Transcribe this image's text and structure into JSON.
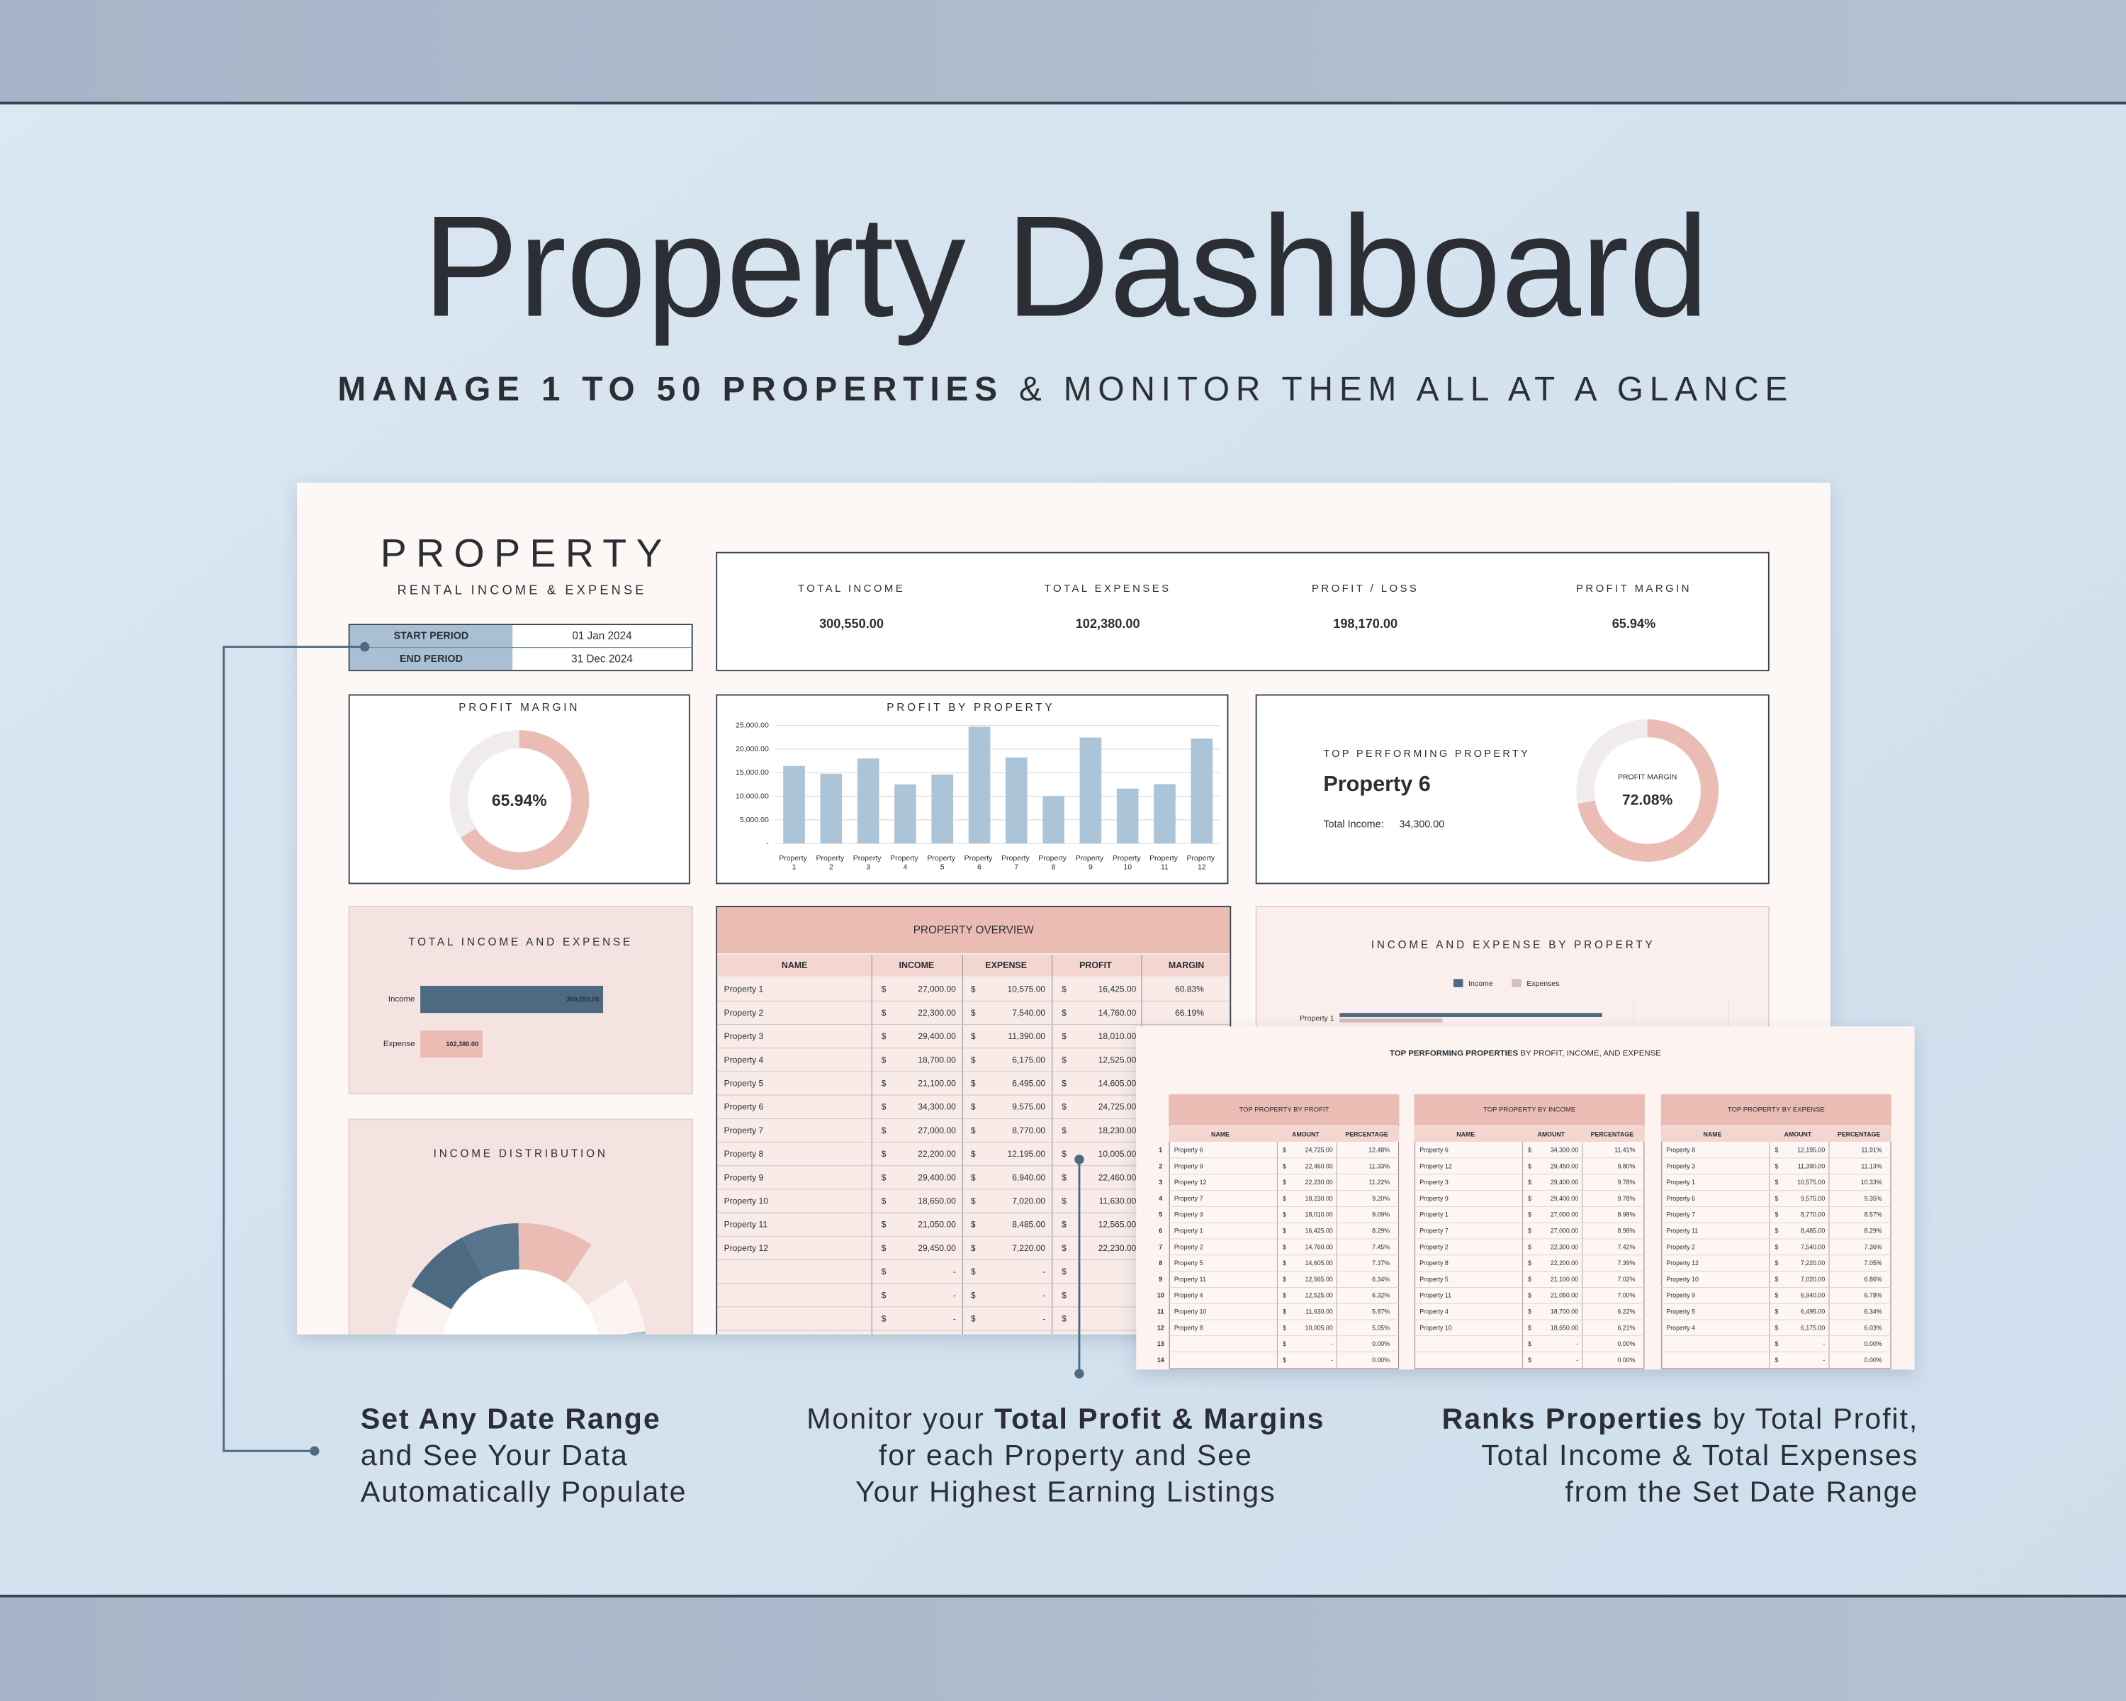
{
  "header": {
    "title": "Property Dashboard",
    "subtitle": [
      {
        "bold": "MANAGE 1 TO 50 PROPERTIES"
      },
      " & MONITOR THEM ALL AT A GLANCE"
    ]
  },
  "dashboard": {
    "brand": "PROPERTY",
    "tagline": "RENTAL INCOME & EXPENSE",
    "period": [
      [
        "START PERIOD",
        "01 Jan 2024"
      ],
      [
        "END PERIOD",
        "31 Dec 2024"
      ]
    ],
    "kpis": [
      [
        "TOTAL INCOME",
        "300,550.00"
      ],
      [
        "TOTAL EXPENSES",
        "102,380.00"
      ],
      [
        "PROFIT / LOSS",
        "198,170.00"
      ],
      [
        "PROFIT MARGIN",
        "65.94%"
      ]
    ],
    "profit_margin": {
      "type": "donut",
      "title": "PROFIT MARGIN",
      "value": 65.94,
      "value_label": "65.94%",
      "color": "#ebbcb3"
    },
    "profit_by_property": {
      "type": "bar",
      "title": "PROFIT BY PROPERTY",
      "categories": [
        "Property 1",
        "Property 2",
        "Property 3",
        "Property 4",
        "Property 5",
        "Property 6",
        "Property 7",
        "Property 8",
        "Property 9",
        "Property 10",
        "Property 11",
        "Property 12"
      ],
      "values": [
        16425,
        14760,
        18010,
        12525,
        14605,
        24725,
        18230,
        10005,
        22460,
        11630,
        12565,
        22230
      ],
      "color": "#acc4d8",
      "ylim": [
        0,
        25000
      ],
      "yticks": [
        {
          "value": 0,
          "label": "-"
        },
        {
          "value": 5000,
          "label": "5,000.00"
        },
        {
          "value": 10000,
          "label": "10,000.00"
        },
        {
          "value": 15000,
          "label": "15,000.00"
        },
        {
          "value": 20000,
          "label": "20,000.00"
        },
        {
          "value": 25000,
          "label": "25,000.00"
        }
      ],
      "grid": true
    },
    "top_property": {
      "title": "TOP PERFORMING PROPERTY",
      "name": "Property 6",
      "income_label": "Total Income:",
      "income": "34,300.00",
      "margin": {
        "type": "donut",
        "title": "PROFIT MARGIN",
        "value": 72.08,
        "value_label": "72.08%",
        "color": "#ebbcb3"
      }
    },
    "income_expense": {
      "type": "barh",
      "title": "TOTAL INCOME AND EXPENSE",
      "categories": [
        "Income",
        "Expense"
      ],
      "values": [
        300550,
        102380
      ],
      "value_labels": [
        "300,550.00",
        "102,380.00"
      ],
      "colors": [
        "#4c6a82",
        "#ebbcb3"
      ],
      "xlim": [
        0,
        350000
      ]
    },
    "income_distribution": {
      "type": "donut",
      "title": "INCOME DISTRIBUTION",
      "values": [
        27000,
        22300,
        29400,
        18700,
        21100,
        34300,
        27000,
        22200,
        29400,
        18650,
        21050,
        29450
      ],
      "colors": [
        "#4c6a82",
        "#56758d",
        "#ebbcb3",
        "#f3e4e0",
        "#fbf3f1",
        "#a9c0d4",
        "#dfe6ee"
      ]
    },
    "overview": {
      "title": "PROPERTY OVERVIEW",
      "columns": [
        "NAME",
        "INCOME",
        "EXPENSE",
        "PROFIT",
        "MARGIN"
      ],
      "rows": [
        [
          "Property 1",
          "$",
          "27,000.00",
          "$",
          "10,575.00",
          "$",
          "16,425.00",
          "60.83%"
        ],
        [
          "Property 2",
          "$",
          "22,300.00",
          "$",
          "7,540.00",
          "$",
          "14,760.00",
          "66.19%"
        ],
        [
          "Property 3",
          "$",
          "29,400.00",
          "$",
          "11,390.00",
          "$",
          "18,010.00"
        ],
        [
          "Property 4",
          "$",
          "18,700.00",
          "$",
          "6,175.00",
          "$",
          "12,525.00"
        ],
        [
          "Property 5",
          "$",
          "21,100.00",
          "$",
          "6,495.00",
          "$",
          "14,605.00"
        ],
        [
          "Property 6",
          "$",
          "34,300.00",
          "$",
          "9,575.00",
          "$",
          "24,725.00"
        ],
        [
          "Property 7",
          "$",
          "27,000.00",
          "$",
          "8,770.00",
          "$",
          "18,230.00"
        ],
        [
          "Property 8",
          "$",
          "22,200.00",
          "$",
          "12,195.00",
          "$",
          "10,005.00"
        ],
        [
          "Property 9",
          "$",
          "29,400.00",
          "$",
          "6,940.00",
          "$",
          "22,460.00"
        ],
        [
          "Property 10",
          "$",
          "18,650.00",
          "$",
          "7,020.00",
          "$",
          "11,630.00"
        ],
        [
          "Property 11",
          "$",
          "21,050.00",
          "$",
          "8,485.00",
          "$",
          "12,565.00"
        ],
        [
          "Property 12",
          "$",
          "29,450.00",
          "$",
          "7,220.00",
          "$",
          "22,230.00"
        ],
        [
          "$",
          "-",
          "$",
          "-",
          "$"
        ],
        [
          "$",
          "-",
          "$",
          "-",
          "$"
        ],
        [
          "$",
          "-",
          "$",
          "-",
          "$"
        ]
      ]
    },
    "by_property": {
      "type": "barh",
      "title": "INCOME AND EXPENSE BY PROPERTY",
      "categories": [
        "Property 1"
      ],
      "series": [
        {
          "name": "Income",
          "color": "#4c6a82",
          "values": [
            27000
          ]
        },
        {
          "name": "Expenses",
          "color": "#d2bfbd",
          "values": [
            10575
          ]
        }
      ],
      "xlim": [
        0,
        35000
      ]
    }
  },
  "ranking": {
    "title": [
      {
        "bold": "TOP PERFORMING PROPERTIES"
      },
      " BY PROFIT, INCOME, AND EXPENSE"
    ],
    "ranks": [
      "1",
      "2",
      "3",
      "4",
      "5",
      "6",
      "7",
      "8",
      "9",
      "10",
      "11",
      "12",
      "13",
      "14"
    ],
    "tables": [
      {
        "title": "TOP PROPERTY BY PROFIT",
        "columns": [
          "NAME",
          "AMOUNT",
          "PERCENTAGE"
        ],
        "rows": [
          [
            "Property 6",
            "$",
            "24,725.00",
            "12.48%"
          ],
          [
            "Property 9",
            "$",
            "22,460.00",
            "11.33%"
          ],
          [
            "Property 12",
            "$",
            "22,230.00",
            "11.22%"
          ],
          [
            "Property 7",
            "$",
            "18,230.00",
            "9.20%"
          ],
          [
            "Property 3",
            "$",
            "18,010.00",
            "9.09%"
          ],
          [
            "Property 1",
            "$",
            "16,425.00",
            "8.29%"
          ],
          [
            "Property 2",
            "$",
            "14,760.00",
            "7.45%"
          ],
          [
            "Property 5",
            "$",
            "14,605.00",
            "7.37%"
          ],
          [
            "Property 11",
            "$",
            "12,565.00",
            "6.34%"
          ],
          [
            "Property 4",
            "$",
            "12,525.00",
            "6.32%"
          ],
          [
            "Property 10",
            "$",
            "11,630.00",
            "5.87%"
          ],
          [
            "Property 8",
            "$",
            "10,005.00",
            "5.05%"
          ],
          [
            "$",
            "-",
            "0.00%"
          ],
          [
            "$",
            "-",
            "0.00%"
          ]
        ]
      },
      {
        "title": "TOP PROPERTY BY INCOME",
        "columns": [
          "NAME",
          "AMOUNT",
          "PERCENTAGE"
        ],
        "rows": [
          [
            "Property 6",
            "$",
            "34,300.00",
            "11.41%"
          ],
          [
            "Property 12",
            "$",
            "29,450.00",
            "9.80%"
          ],
          [
            "Property 3",
            "$",
            "29,400.00",
            "9.78%"
          ],
          [
            "Property 9",
            "$",
            "29,400.00",
            "9.78%"
          ],
          [
            "Property 1",
            "$",
            "27,000.00",
            "8.98%"
          ],
          [
            "Property 7",
            "$",
            "27,000.00",
            "8.98%"
          ],
          [
            "Property 2",
            "$",
            "22,300.00",
            "7.42%"
          ],
          [
            "Property 8",
            "$",
            "22,200.00",
            "7.39%"
          ],
          [
            "Property 5",
            "$",
            "21,100.00",
            "7.02%"
          ],
          [
            "Property 11",
            "$",
            "21,050.00",
            "7.00%"
          ],
          [
            "Property 4",
            "$",
            "18,700.00",
            "6.22%"
          ],
          [
            "Property 10",
            "$",
            "18,650.00",
            "6.21%"
          ],
          [
            "$",
            "-",
            "0.00%"
          ],
          [
            "$",
            "-",
            "0.00%"
          ]
        ]
      },
      {
        "title": "TOP PROPERTY BY EXPENSE",
        "columns": [
          "NAME",
          "AMOUNT",
          "PERCENTAGE"
        ],
        "rows": [
          [
            "Property 8",
            "$",
            "12,195.00",
            "11.91%"
          ],
          [
            "Property 3",
            "$",
            "11,390.00",
            "11.13%"
          ],
          [
            "Property 1",
            "$",
            "10,575.00",
            "10.33%"
          ],
          [
            "Property 6",
            "$",
            "9,575.00",
            "9.35%"
          ],
          [
            "Property 7",
            "$",
            "8,770.00",
            "8.57%"
          ],
          [
            "Property 11",
            "$",
            "8,485.00",
            "8.29%"
          ],
          [
            "Property 2",
            "$",
            "7,540.00",
            "7.36%"
          ],
          [
            "Property 12",
            "$",
            "7,220.00",
            "7.05%"
          ],
          [
            "Property 10",
            "$",
            "7,020.00",
            "6.86%"
          ],
          [
            "Property 9",
            "$",
            "6,940.00",
            "6.78%"
          ],
          [
            "Property 5",
            "$",
            "6,495.00",
            "6.34%"
          ],
          [
            "Property 4",
            "$",
            "6,175.00",
            "6.03%"
          ],
          [
            "$",
            "-",
            "0.00%"
          ],
          [
            "$",
            "-",
            "0.00%"
          ]
        ]
      }
    ]
  },
  "captions": [
    [
      [
        {
          "bold": "Set Any Date Range"
        }
      ],
      [
        "and See Your Data"
      ],
      [
        "Automatically Populate"
      ]
    ],
    [
      [
        "Monitor your ",
        {
          "bold": "Total Profit & Margins"
        }
      ],
      [
        "for each Property and See"
      ],
      [
        "Your Highest Earning Listings"
      ]
    ],
    [
      [
        {
          "bold": "Ranks Properties"
        },
        " by Total Profit,"
      ],
      [
        "Total Income & Total Expenses"
      ],
      [
        "from the Set Date Range"
      ]
    ]
  ]
}
